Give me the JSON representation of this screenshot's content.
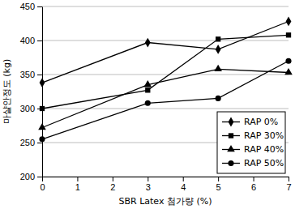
{
  "chart_data": {
    "type": "line",
    "x_label": "SBR Latex 첨가량 (%)",
    "y_label": "마샬안정도 (kg)",
    "x": [
      0,
      3,
      5,
      7
    ],
    "series": [
      {
        "name": "RAP 0%",
        "color": "#000000",
        "marker": "diamond",
        "values": [
          338,
          397,
          387,
          428
        ]
      },
      {
        "name": "RAP 30%",
        "color": "#000000",
        "marker": "square",
        "values": [
          300,
          327,
          402,
          408
        ]
      },
      {
        "name": "RAP 40%",
        "color": "#000000",
        "marker": "triangle",
        "values": [
          272,
          335,
          358,
          353
        ]
      },
      {
        "name": "RAP 50%",
        "color": "#000000",
        "marker": "circle",
        "values": [
          255,
          308,
          315,
          370
        ]
      }
    ],
    "xlim": [
      0,
      7
    ],
    "xticks": [
      0,
      1,
      2,
      3,
      4,
      5,
      6,
      7
    ],
    "ylim": [
      200,
      450
    ],
    "yticks": [
      200,
      250,
      300,
      350,
      400,
      450
    ],
    "grid": true,
    "legend": "lower right"
  }
}
